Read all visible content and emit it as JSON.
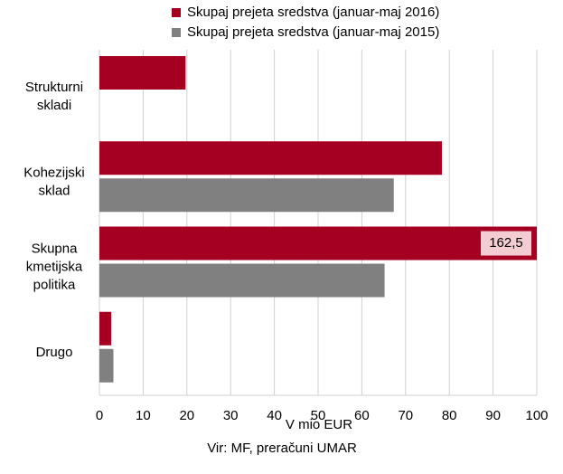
{
  "chart_data": {
    "type": "hbar",
    "categories": [
      "Strukturni skladi",
      "Kohezijski sklad",
      "Skupna kmetijska politika",
      "Drugo"
    ],
    "series": [
      {
        "name": "Skupaj prejeta sredstva (januar-maj 2016)",
        "color": "#a50021",
        "values": [
          19.7,
          78.3,
          162.5,
          2.7
        ],
        "value_labels": [
          null,
          null,
          "162,5",
          null
        ]
      },
      {
        "name": "Skupaj prejeta sredstva (januar-maj 2015)",
        "color": "#808080",
        "values": [
          null,
          67.3,
          65.2,
          3.2
        ]
      }
    ],
    "xlim": [
      0,
      100
    ],
    "xticks": [
      0,
      10,
      20,
      30,
      40,
      50,
      60,
      70,
      80,
      90,
      100
    ],
    "xlabel": "V mio EUR",
    "source": "Vir: MF, preračuni UMAR",
    "grid": true,
    "legend": "top"
  }
}
